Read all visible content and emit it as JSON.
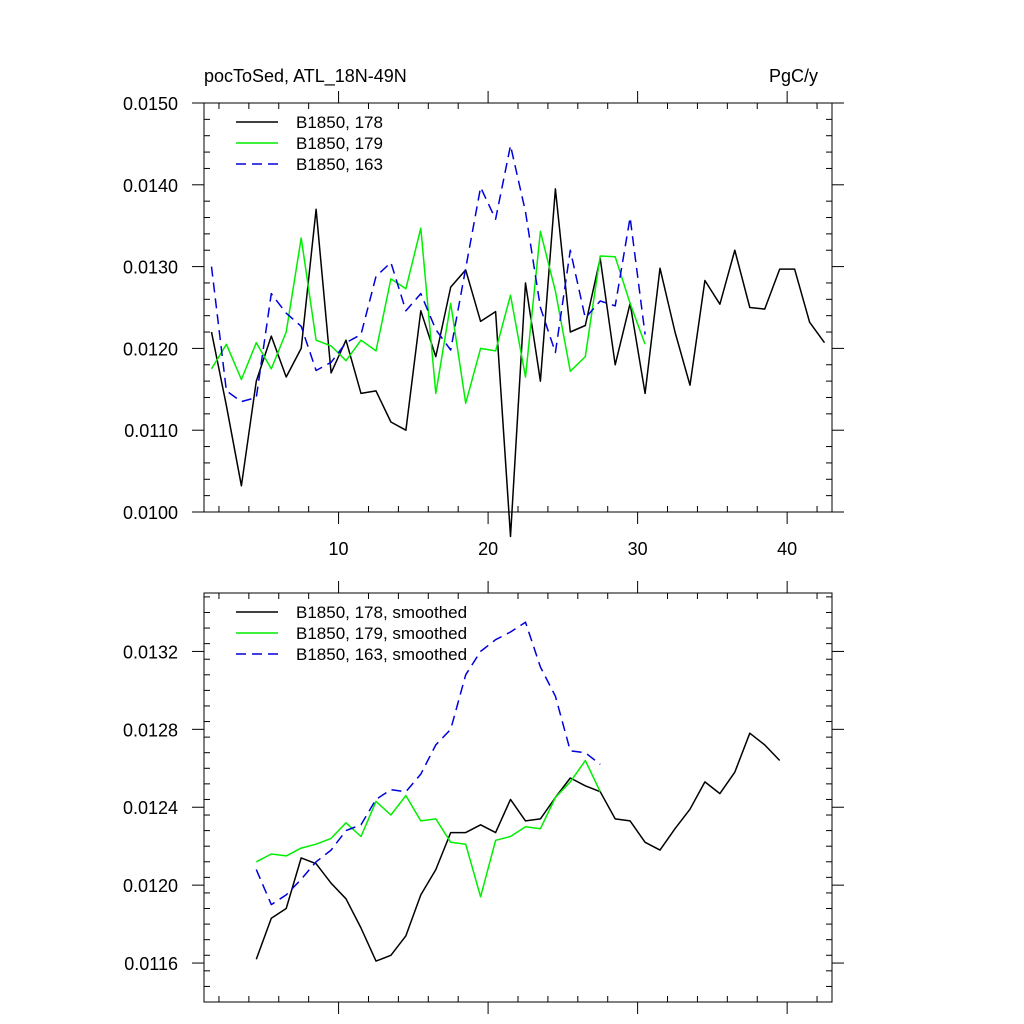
{
  "chart_data": [
    {
      "type": "line",
      "title_left": "pocToSed, ATL_18N-49N",
      "title_right": "PgC/y",
      "xlim": [
        1,
        43
      ],
      "ylim": [
        0.01,
        0.015
      ],
      "xticks": [
        10,
        20,
        30,
        40
      ],
      "xtick_labels": [
        "10",
        "20",
        "30",
        "40"
      ],
      "yticks": [
        0.01,
        0.011,
        0.012,
        0.013,
        0.014,
        0.015
      ],
      "ytick_labels": [
        "0.0100",
        "0.0110",
        "0.0120",
        "0.0130",
        "0.0140",
        "0.0150"
      ],
      "legend_position": "top-left",
      "series": [
        {
          "name": "B1850, 178",
          "color": "#000000",
          "dash": "solid",
          "x": [
            1.5,
            2.5,
            3.5,
            4.5,
            5.5,
            6.5,
            7.5,
            8.5,
            9.5,
            10.5,
            11.5,
            12.5,
            13.5,
            14.5,
            15.5,
            16.5,
            17.5,
            18.5,
            19.5,
            20.5,
            21.5,
            22.5,
            23.5,
            24.5,
            25.5,
            26.5,
            27.5,
            28.5,
            29.5,
            30.5,
            31.5,
            32.5,
            33.5,
            34.5,
            35.5,
            36.5,
            37.5,
            38.5,
            39.5,
            40.5,
            41.5,
            42.5
          ],
          "values": [
            0.0122,
            0.0113,
            0.01032,
            0.0116,
            0.01215,
            0.01165,
            0.012,
            0.0137,
            0.0117,
            0.0121,
            0.01145,
            0.01148,
            0.0111,
            0.011,
            0.01246,
            0.0119,
            0.01275,
            0.01296,
            0.01233,
            0.01245,
            0.0097,
            0.0128,
            0.0116,
            0.01395,
            0.0122,
            0.01228,
            0.0131,
            0.0118,
            0.01255,
            0.01145,
            0.01298,
            0.0122,
            0.01155,
            0.01283,
            0.01254,
            0.0132,
            0.0125,
            0.01248,
            0.01297,
            0.01297,
            0.01232,
            0.01207
          ]
        },
        {
          "name": "B1850, 179",
          "color": "#00ee00",
          "dash": "solid",
          "x": [
            1.5,
            2.5,
            3.5,
            4.5,
            5.5,
            6.5,
            7.5,
            8.5,
            9.5,
            10.5,
            11.5,
            12.5,
            13.5,
            14.5,
            15.5,
            16.5,
            17.5,
            18.5,
            19.5,
            20.5,
            21.5,
            22.5,
            23.5,
            24.5,
            25.5,
            26.5,
            27.5,
            28.5,
            29.5,
            30.5
          ],
          "values": [
            0.01175,
            0.01205,
            0.01162,
            0.01207,
            0.01175,
            0.0122,
            0.01335,
            0.0121,
            0.01203,
            0.01185,
            0.0121,
            0.01197,
            0.01285,
            0.01273,
            0.01347,
            0.01145,
            0.01255,
            0.01133,
            0.012,
            0.01197,
            0.01265,
            0.01165,
            0.01343,
            0.0127,
            0.01172,
            0.0119,
            0.01313,
            0.01312,
            0.01255,
            0.01205
          ]
        },
        {
          "name": "B1850, 163",
          "color": "#0000dd",
          "dash": "dashed",
          "x": [
            1.5,
            2.5,
            3.5,
            4.5,
            5.5,
            6.5,
            7.5,
            8.5,
            9.5,
            10.5,
            11.5,
            12.5,
            13.5,
            14.5,
            15.5,
            16.5,
            17.5,
            18.5,
            19.5,
            20.5,
            21.5,
            22.5,
            23.5,
            24.5,
            25.5,
            26.5,
            27.5,
            28.5,
            29.5,
            30.5
          ],
          "values": [
            0.013,
            0.01148,
            0.01135,
            0.0114,
            0.01267,
            0.01243,
            0.01227,
            0.01173,
            0.01183,
            0.01207,
            0.01217,
            0.01288,
            0.01305,
            0.01246,
            0.01267,
            0.01223,
            0.01198,
            0.01298,
            0.01397,
            0.01358,
            0.01448,
            0.01367,
            0.0125,
            0.01195,
            0.0132,
            0.01237,
            0.01258,
            0.01252,
            0.0136,
            0.01217
          ]
        }
      ]
    },
    {
      "type": "line",
      "xlim": [
        1,
        43
      ],
      "ylim": [
        0.0114,
        0.0135
      ],
      "xticks": [
        10,
        20,
        30,
        40
      ],
      "yticks": [
        0.0116,
        0.012,
        0.0124,
        0.0128,
        0.0132
      ],
      "ytick_labels": [
        "0.0116",
        "0.0120",
        "0.0124",
        "0.0128",
        "0.0132"
      ],
      "legend_position": "top-left",
      "series": [
        {
          "name": "B1850, 178, smoothed",
          "color": "#000000",
          "dash": "solid",
          "x": [
            4.5,
            5.5,
            6.5,
            7.5,
            8.5,
            9.5,
            10.5,
            11.5,
            12.5,
            13.5,
            14.5,
            15.5,
            16.5,
            17.5,
            18.5,
            19.5,
            20.5,
            21.5,
            22.5,
            23.5,
            24.5,
            25.5,
            26.5,
            27.5,
            28.5,
            29.5,
            30.5,
            31.5,
            32.5,
            33.5,
            34.5,
            35.5,
            36.5,
            37.5,
            38.5,
            39.5
          ],
          "values": [
            0.01162,
            0.01183,
            0.01188,
            0.01214,
            0.01211,
            0.01201,
            0.01193,
            0.01178,
            0.01161,
            0.01164,
            0.01174,
            0.01195,
            0.01208,
            0.01227,
            0.01227,
            0.01231,
            0.01227,
            0.01244,
            0.01233,
            0.01234,
            0.01245,
            0.01255,
            0.01251,
            0.01248,
            0.01234,
            0.01233,
            0.01222,
            0.01218,
            0.01229,
            0.01239,
            0.01253,
            0.01247,
            0.01258,
            0.01278,
            0.01272,
            0.01264
          ]
        },
        {
          "name": "B1850, 179, smoothed",
          "color": "#00ee00",
          "dash": "solid",
          "x": [
            4.5,
            5.5,
            6.5,
            7.5,
            8.5,
            9.5,
            10.5,
            11.5,
            12.5,
            13.5,
            14.5,
            15.5,
            16.5,
            17.5,
            18.5,
            19.5,
            20.5,
            21.5,
            22.5,
            23.5,
            24.5,
            25.5,
            26.5,
            27.5
          ],
          "values": [
            0.01212,
            0.01216,
            0.01215,
            0.01219,
            0.01221,
            0.01224,
            0.01232,
            0.01225,
            0.01243,
            0.01236,
            0.01246,
            0.01233,
            0.01234,
            0.01222,
            0.01221,
            0.01194,
            0.01223,
            0.01225,
            0.0123,
            0.01229,
            0.01245,
            0.01253,
            0.01264,
            0.01248
          ]
        },
        {
          "name": "B1850, 163, smoothed",
          "color": "#0000dd",
          "dash": "dashed",
          "x": [
            4.5,
            5.5,
            6.5,
            7.5,
            8.5,
            9.5,
            10.5,
            11.5,
            12.5,
            13.5,
            14.5,
            15.5,
            16.5,
            17.5,
            18.5,
            19.5,
            20.5,
            21.5,
            22.5,
            23.5,
            24.5,
            25.5,
            26.5,
            27.5
          ],
          "values": [
            0.01208,
            0.0119,
            0.01195,
            0.01203,
            0.01212,
            0.01218,
            0.01228,
            0.01231,
            0.01244,
            0.01249,
            0.01248,
            0.01257,
            0.01272,
            0.0128,
            0.01308,
            0.0132,
            0.01326,
            0.0133,
            0.01335,
            0.01312,
            0.01297,
            0.01269,
            0.01268,
            0.01262
          ]
        }
      ]
    }
  ]
}
